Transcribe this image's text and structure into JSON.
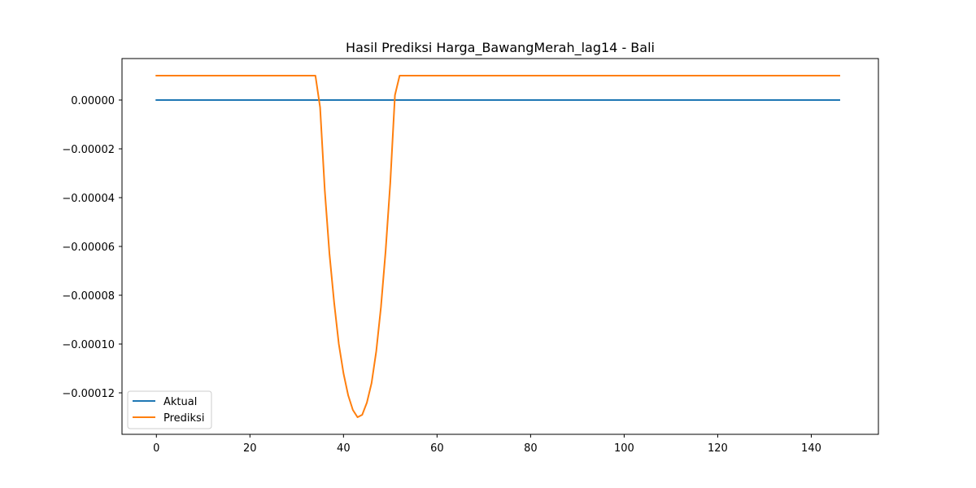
{
  "chart_data": {
    "type": "line",
    "title": "Hasil Prediksi Harga_BawangMerah_lag14 - Bali",
    "xlabel": "",
    "ylabel": "",
    "xlim": [
      -7.35,
      154.35
    ],
    "ylim": [
      -0.000137,
      1.7e-05
    ],
    "x_ticks": [
      0,
      20,
      40,
      60,
      80,
      100,
      120,
      140
    ],
    "x_tick_labels": [
      "0",
      "20",
      "40",
      "60",
      "80",
      "100",
      "120",
      "140"
    ],
    "y_ticks": [
      0,
      -2e-05,
      -4e-05,
      -6e-05,
      -8e-05,
      -0.0001,
      -0.00012
    ],
    "y_tick_labels": [
      "0.00000",
      "−0.00002",
      "−0.00004",
      "−0.00006",
      "−0.00008",
      "−0.00010",
      "−0.00012"
    ],
    "grid": false,
    "legend_position": "lower left",
    "series": [
      {
        "name": "Aktual",
        "color": "#1f77b4",
        "points": [
          [
            0,
            0
          ],
          [
            146,
            0
          ]
        ]
      },
      {
        "name": "Prediksi",
        "color": "#ff7f0e",
        "points": [
          [
            0,
            1e-05
          ],
          [
            34,
            1e-05
          ],
          [
            35,
            -3e-06
          ],
          [
            36,
            -3.7e-05
          ],
          [
            37,
            -6.3e-05
          ],
          [
            38,
            -8.3e-05
          ],
          [
            39,
            -0.0001
          ],
          [
            40,
            -0.000112
          ],
          [
            41,
            -0.000121
          ],
          [
            42,
            -0.000127
          ],
          [
            43,
            -0.00013
          ],
          [
            44,
            -0.000129
          ],
          [
            45,
            -0.000124
          ],
          [
            46,
            -0.000116
          ],
          [
            47,
            -0.000103
          ],
          [
            48,
            -8.5e-05
          ],
          [
            49,
            -6.2e-05
          ],
          [
            50,
            -3.4e-05
          ],
          [
            51,
            2e-06
          ],
          [
            52,
            1e-05
          ],
          [
            146,
            1e-05
          ]
        ]
      }
    ]
  }
}
